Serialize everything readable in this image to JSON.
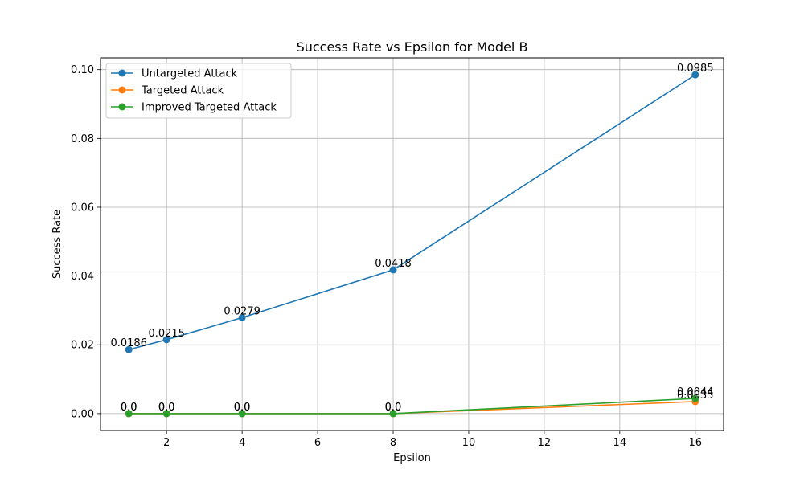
{
  "chart_data": {
    "type": "line",
    "title": "Success Rate vs Epsilon for Model B",
    "xlabel": "Epsilon",
    "ylabel": "Success Rate",
    "x": [
      1,
      2,
      4,
      8,
      16
    ],
    "xlim": [
      0.25,
      16.75
    ],
    "ylim": [
      -0.00493,
      0.10343
    ],
    "xticks": [
      2,
      4,
      6,
      8,
      10,
      12,
      14,
      16
    ],
    "xtick_labels": [
      "2",
      "4",
      "6",
      "8",
      "10",
      "12",
      "14",
      "16"
    ],
    "yticks": [
      0,
      0.02,
      0.04,
      0.06,
      0.08,
      0.1
    ],
    "ytick_labels": [
      "0.00",
      "0.02",
      "0.04",
      "0.06",
      "0.08",
      "0.10"
    ],
    "grid": true,
    "legend_position": "top-left",
    "series": [
      {
        "name": "Untargeted Attack",
        "color": "#1f77b4",
        "marker": "circle",
        "values": [
          0.0186,
          0.0215,
          0.0279,
          0.0418,
          0.0985
        ],
        "labels": [
          "0.0186",
          "0.0215",
          "0.0279",
          "0.0418",
          "0.0985"
        ]
      },
      {
        "name": "Targeted Attack",
        "color": "#ff7f0e",
        "marker": "circle",
        "values": [
          0.0,
          0.0,
          0.0,
          0.0,
          0.0035
        ],
        "labels": [
          "0.0",
          "0.0",
          "0.0",
          "0.0",
          "0.0035"
        ]
      },
      {
        "name": "Improved Targeted Attack",
        "color": "#2ca02c",
        "marker": "circle",
        "values": [
          0.0,
          0.0,
          0.0,
          0.0,
          0.0044
        ],
        "labels": [
          "0.0",
          "0.0",
          "0.0",
          "0.0",
          "0.0044"
        ]
      }
    ]
  }
}
